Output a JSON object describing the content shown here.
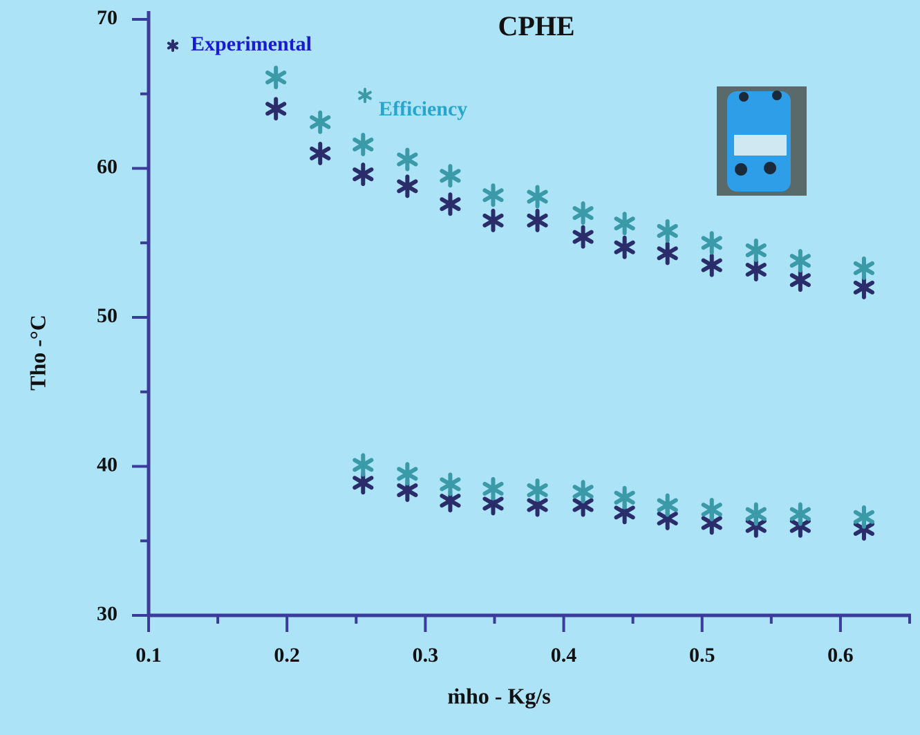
{
  "chart_data": {
    "type": "scatter",
    "title": "CPHE",
    "x_label": "ṁho - Kg/s",
    "y_label": "Tho -°C",
    "xlim": [
      0.1,
      0.65
    ],
    "ylim": [
      30,
      70
    ],
    "xticks": [
      0.1,
      0.2,
      0.3,
      0.4,
      0.5,
      0.6
    ],
    "yticks": [
      30,
      40,
      50,
      60,
      70
    ],
    "series": [
      {
        "name": "Experimental",
        "color": "#2b2d6b",
        "x": [
          0.192,
          0.224,
          0.255,
          0.287,
          0.318,
          0.349,
          0.381,
          0.414,
          0.444,
          0.475,
          0.507,
          0.539,
          0.571,
          0.617,
          0.255,
          0.287,
          0.318,
          0.349,
          0.381,
          0.414,
          0.444,
          0.475,
          0.507,
          0.539,
          0.571,
          0.617
        ],
        "values": [
          64.0,
          61.0,
          59.6,
          58.8,
          57.6,
          56.5,
          56.5,
          55.4,
          54.7,
          54.3,
          53.5,
          53.2,
          52.5,
          52.0,
          38.9,
          38.4,
          37.7,
          37.5,
          37.4,
          37.4,
          36.9,
          36.5,
          36.2,
          36.0,
          36.0,
          35.8
        ]
      },
      {
        "name": "Efficiency",
        "color": "#3a9aa8",
        "x": [
          0.192,
          0.224,
          0.255,
          0.287,
          0.318,
          0.349,
          0.381,
          0.414,
          0.444,
          0.475,
          0.507,
          0.539,
          0.571,
          0.617,
          0.255,
          0.287,
          0.318,
          0.349,
          0.381,
          0.414,
          0.444,
          0.475,
          0.507,
          0.539,
          0.571,
          0.617
        ],
        "values": [
          66.1,
          63.1,
          61.6,
          60.6,
          59.5,
          58.2,
          58.1,
          57.0,
          56.3,
          55.8,
          55.0,
          54.5,
          53.8,
          53.3,
          40.1,
          39.5,
          38.8,
          38.5,
          38.4,
          38.3,
          37.9,
          37.4,
          37.1,
          36.8,
          36.8,
          36.6
        ]
      }
    ]
  }
}
